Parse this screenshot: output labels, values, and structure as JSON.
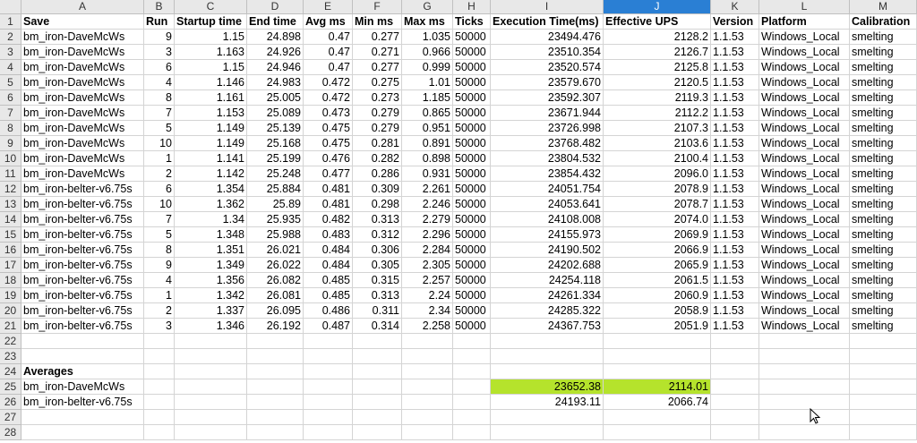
{
  "columns": [
    "A",
    "B",
    "C",
    "D",
    "E",
    "F",
    "G",
    "H",
    "I",
    "J",
    "K",
    "L",
    "M"
  ],
  "selected_column": "J",
  "header_row": [
    "Save",
    "Run",
    "Startup time",
    "End time",
    "Avg ms",
    "Min ms",
    "Max ms",
    "Ticks",
    "Execution Time(ms)",
    "Effective UPS",
    "Version",
    "Platform",
    "Calibration"
  ],
  "rows": [
    [
      "bm_iron-DaveMcWs",
      "9",
      "1.15",
      "24.898",
      "0.47",
      "0.277",
      "1.035",
      "50000",
      "23494.476",
      "2128.2",
      "1.1.53",
      "Windows_Local",
      "smelting"
    ],
    [
      "bm_iron-DaveMcWs",
      "3",
      "1.163",
      "24.926",
      "0.47",
      "0.271",
      "0.966",
      "50000",
      "23510.354",
      "2126.7",
      "1.1.53",
      "Windows_Local",
      "smelting"
    ],
    [
      "bm_iron-DaveMcWs",
      "6",
      "1.15",
      "24.946",
      "0.47",
      "0.277",
      "0.999",
      "50000",
      "23520.574",
      "2125.8",
      "1.1.53",
      "Windows_Local",
      "smelting"
    ],
    [
      "bm_iron-DaveMcWs",
      "4",
      "1.146",
      "24.983",
      "0.472",
      "0.275",
      "1.01",
      "50000",
      "23579.670",
      "2120.5",
      "1.1.53",
      "Windows_Local",
      "smelting"
    ],
    [
      "bm_iron-DaveMcWs",
      "8",
      "1.161",
      "25.005",
      "0.472",
      "0.273",
      "1.185",
      "50000",
      "23592.307",
      "2119.3",
      "1.1.53",
      "Windows_Local",
      "smelting"
    ],
    [
      "bm_iron-DaveMcWs",
      "7",
      "1.153",
      "25.089",
      "0.473",
      "0.279",
      "0.865",
      "50000",
      "23671.944",
      "2112.2",
      "1.1.53",
      "Windows_Local",
      "smelting"
    ],
    [
      "bm_iron-DaveMcWs",
      "5",
      "1.149",
      "25.139",
      "0.475",
      "0.279",
      "0.951",
      "50000",
      "23726.998",
      "2107.3",
      "1.1.53",
      "Windows_Local",
      "smelting"
    ],
    [
      "bm_iron-DaveMcWs",
      "10",
      "1.149",
      "25.168",
      "0.475",
      "0.281",
      "0.891",
      "50000",
      "23768.482",
      "2103.6",
      "1.1.53",
      "Windows_Local",
      "smelting"
    ],
    [
      "bm_iron-DaveMcWs",
      "1",
      "1.141",
      "25.199",
      "0.476",
      "0.282",
      "0.898",
      "50000",
      "23804.532",
      "2100.4",
      "1.1.53",
      "Windows_Local",
      "smelting"
    ],
    [
      "bm_iron-DaveMcWs",
      "2",
      "1.142",
      "25.248",
      "0.477",
      "0.286",
      "0.931",
      "50000",
      "23854.432",
      "2096.0",
      "1.1.53",
      "Windows_Local",
      "smelting"
    ],
    [
      "bm_iron-belter-v6.75s",
      "6",
      "1.354",
      "25.884",
      "0.481",
      "0.309",
      "2.261",
      "50000",
      "24051.754",
      "2078.9",
      "1.1.53",
      "Windows_Local",
      "smelting"
    ],
    [
      "bm_iron-belter-v6.75s",
      "10",
      "1.362",
      "25.89",
      "0.481",
      "0.298",
      "2.246",
      "50000",
      "24053.641",
      "2078.7",
      "1.1.53",
      "Windows_Local",
      "smelting"
    ],
    [
      "bm_iron-belter-v6.75s",
      "7",
      "1.34",
      "25.935",
      "0.482",
      "0.313",
      "2.279",
      "50000",
      "24108.008",
      "2074.0",
      "1.1.53",
      "Windows_Local",
      "smelting"
    ],
    [
      "bm_iron-belter-v6.75s",
      "5",
      "1.348",
      "25.988",
      "0.483",
      "0.312",
      "2.296",
      "50000",
      "24155.973",
      "2069.9",
      "1.1.53",
      "Windows_Local",
      "smelting"
    ],
    [
      "bm_iron-belter-v6.75s",
      "8",
      "1.351",
      "26.021",
      "0.484",
      "0.306",
      "2.284",
      "50000",
      "24190.502",
      "2066.9",
      "1.1.53",
      "Windows_Local",
      "smelting"
    ],
    [
      "bm_iron-belter-v6.75s",
      "9",
      "1.349",
      "26.022",
      "0.484",
      "0.305",
      "2.305",
      "50000",
      "24202.688",
      "2065.9",
      "1.1.53",
      "Windows_Local",
      "smelting"
    ],
    [
      "bm_iron-belter-v6.75s",
      "4",
      "1.356",
      "26.082",
      "0.485",
      "0.315",
      "2.257",
      "50000",
      "24254.118",
      "2061.5",
      "1.1.53",
      "Windows_Local",
      "smelting"
    ],
    [
      "bm_iron-belter-v6.75s",
      "1",
      "1.342",
      "26.081",
      "0.485",
      "0.313",
      "2.24",
      "50000",
      "24261.334",
      "2060.9",
      "1.1.53",
      "Windows_Local",
      "smelting"
    ],
    [
      "bm_iron-belter-v6.75s",
      "2",
      "1.337",
      "26.095",
      "0.486",
      "0.311",
      "2.34",
      "50000",
      "24285.322",
      "2058.9",
      "1.1.53",
      "Windows_Local",
      "smelting"
    ],
    [
      "bm_iron-belter-v6.75s",
      "3",
      "1.346",
      "26.192",
      "0.487",
      "0.314",
      "2.258",
      "50000",
      "24367.753",
      "2051.9",
      "1.1.53",
      "Windows_Local",
      "smelting"
    ]
  ],
  "averages": {
    "label": "Averages",
    "rows": [
      {
        "name": "bm_iron-DaveMcWs",
        "exec": "23652.38",
        "ups": "2114.01"
      },
      {
        "name": "bm_iron-belter-v6.75s",
        "exec": "24193.11",
        "ups": "2066.74"
      }
    ]
  },
  "row_numbers": [
    "1",
    "2",
    "3",
    "4",
    "5",
    "6",
    "7",
    "8",
    "9",
    "10",
    "11",
    "12",
    "13",
    "14",
    "15",
    "16",
    "17",
    "18",
    "19",
    "20",
    "21",
    "22",
    "23",
    "24",
    "25",
    "26",
    "27",
    "28"
  ],
  "highlight_color": "#b5e32c",
  "selected_header_color": "#2a7fd4"
}
